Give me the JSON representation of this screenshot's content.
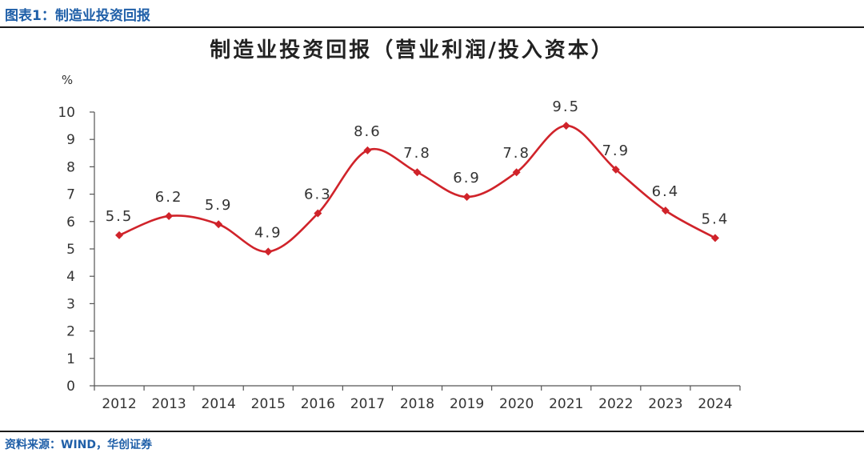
{
  "figure": {
    "label": "图表1：制造业投资回报",
    "source": "资料来源：WIND，华创证券"
  },
  "colors": {
    "accent": "#1f5fa8",
    "line": "#d0232a",
    "axis": "#555555"
  },
  "chart_data": {
    "type": "line",
    "title": "制造业投资回报（营业利润/投入资本）",
    "ylabel": "%",
    "xlabel": "",
    "categories": [
      "2012",
      "2013",
      "2014",
      "2015",
      "2016",
      "2017",
      "2018",
      "2019",
      "2020",
      "2021",
      "2022",
      "2023",
      "2024"
    ],
    "yticks": [
      "0",
      "1",
      "2",
      "3",
      "4",
      "5",
      "6",
      "7",
      "8",
      "9",
      "10"
    ],
    "ylim": [
      0,
      10
    ],
    "grid": false,
    "legend": "none",
    "series": [
      {
        "values": [
          5.5,
          6.2,
          5.9,
          4.9,
          6.3,
          8.6,
          7.8,
          6.9,
          7.8,
          9.5,
          7.9,
          6.4,
          5.4
        ],
        "labels": [
          "5.5",
          "6.2",
          "5.9",
          "4.9",
          "6.3",
          "8.6",
          "7.8",
          "6.9",
          "7.8",
          "9.5",
          "7.9",
          "6.4",
          "5.4"
        ]
      }
    ]
  }
}
